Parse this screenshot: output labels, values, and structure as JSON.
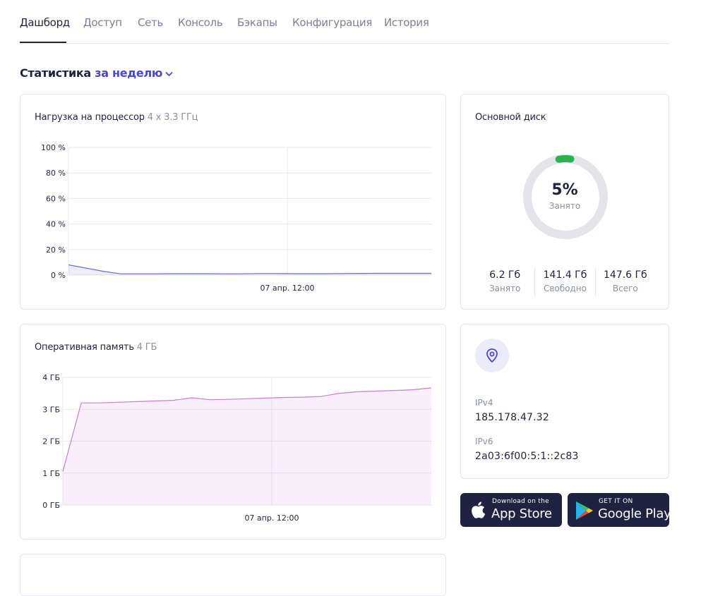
{
  "tabs": [
    {
      "label": "Дашборд",
      "active": true
    },
    {
      "label": "Доступ"
    },
    {
      "label": "Сеть"
    },
    {
      "label": "Консоль"
    },
    {
      "label": "Бэкапы"
    },
    {
      "label": "Конфигурация"
    },
    {
      "label": "История"
    }
  ],
  "stats": {
    "title": "Статистика",
    "period": "за неделю"
  },
  "cpu": {
    "title": "Нагрузка на процессор",
    "spec": "4 x 3.3 ГГц",
    "chart_data": {
      "type": "area",
      "y_ticks": [
        "100 %",
        "80 %",
        "60 %",
        "40 %",
        "20 %",
        "0 %"
      ],
      "x_tick": "07 апр. 12:00",
      "ylim": [
        0,
        100
      ],
      "values": [
        8,
        5.5,
        3,
        1,
        1,
        1,
        1.1,
        1.1,
        1.1,
        1,
        1,
        1.2,
        1.2,
        1.1,
        1.1,
        1.1,
        1.2,
        1.3,
        1.4,
        1.4,
        1.4,
        1.4
      ],
      "color": "#6b6bd6"
    }
  },
  "ram": {
    "title": "Оперативная память",
    "spec": "4 ГБ",
    "chart_data": {
      "type": "area",
      "y_ticks": [
        "4 ГБ",
        "3 ГБ",
        "2 ГБ",
        "1 ГБ",
        "0 ГБ"
      ],
      "x_tick": "07 апр. 12:00",
      "ylim": [
        0,
        4
      ],
      "values": [
        1.05,
        3.2,
        3.2,
        3.22,
        3.24,
        3.26,
        3.28,
        3.36,
        3.3,
        3.31,
        3.33,
        3.35,
        3.37,
        3.38,
        3.4,
        3.5,
        3.55,
        3.57,
        3.59,
        3.61,
        3.67
      ],
      "color": "#c77ed4"
    }
  },
  "disk": {
    "title": "Основной диск",
    "percent_label": "5%",
    "percent": 5,
    "used_caption": "Занято",
    "stats": [
      {
        "value": "6.2 Гб",
        "label": "Занято"
      },
      {
        "value": "141.4 Гб",
        "label": "Свободно"
      },
      {
        "value": "147.6 Гб",
        "label": "Всего"
      }
    ],
    "color": "#2bb24c"
  },
  "network": {
    "ipv4_label": "IPv4",
    "ipv4": "185.178.47.32",
    "ipv6_label": "IPv6",
    "ipv6": "2a03:6f00:5:1::2c83"
  },
  "stores": {
    "appstore_small": "Download on the",
    "appstore_big": "App Store",
    "googleplay_small": "GET IT ON",
    "googleplay_big": "Google Play"
  }
}
